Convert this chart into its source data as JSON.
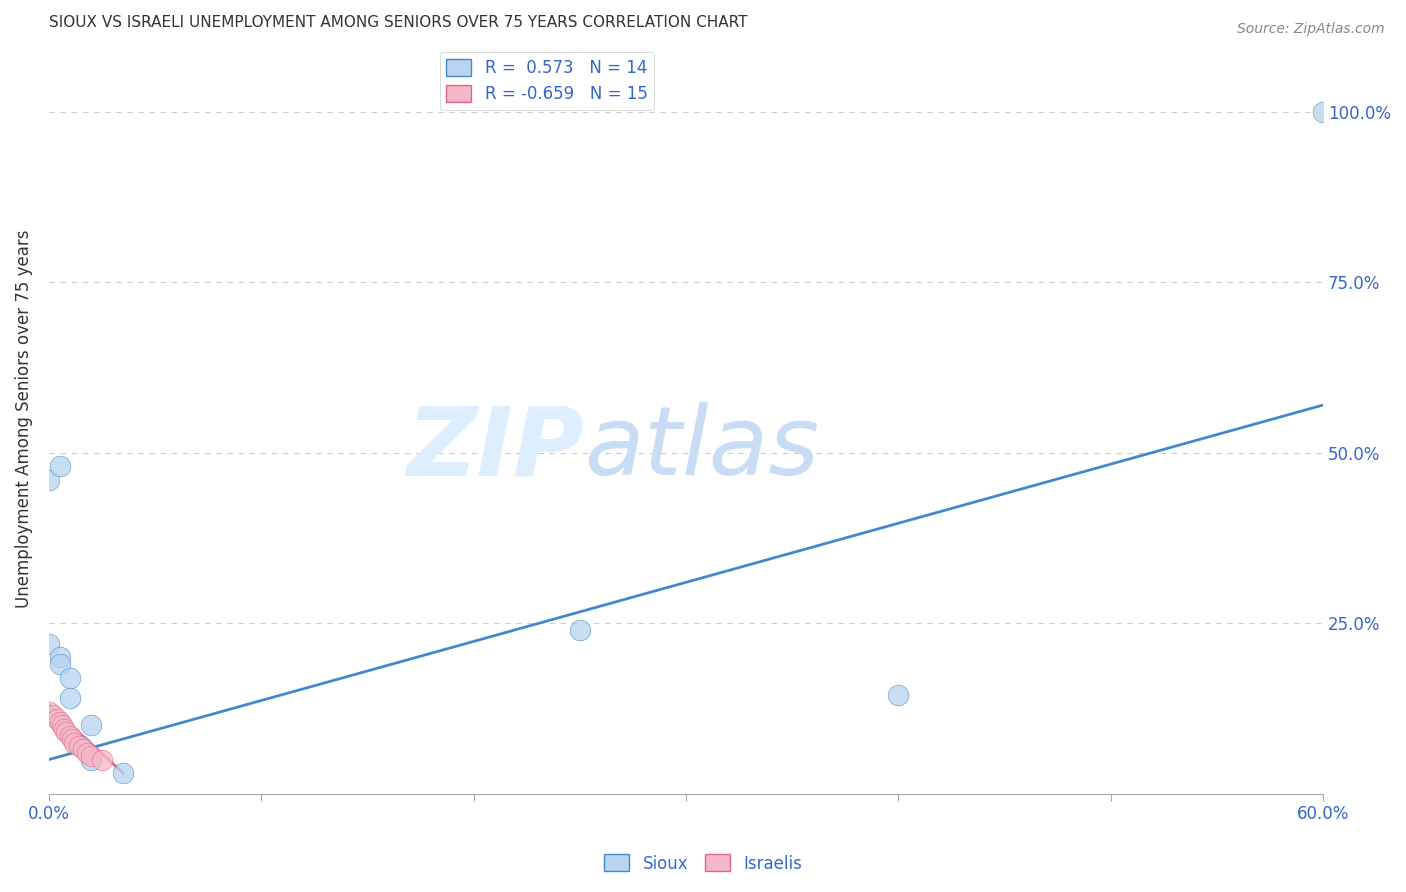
{
  "title": "SIOUX VS ISRAELI UNEMPLOYMENT AMONG SENIORS OVER 75 YEARS CORRELATION CHART",
  "source": "Source: ZipAtlas.com",
  "ylabel": "Unemployment Among Seniors over 75 years",
  "xlim": [
    0.0,
    0.6
  ],
  "ylim": [
    0.0,
    1.1
  ],
  "xtick_pos": [
    0.0,
    0.1,
    0.2,
    0.3,
    0.4,
    0.5,
    0.6
  ],
  "xtick_labels": [
    "0.0%",
    "",
    "",
    "",
    "",
    "",
    "60.0%"
  ],
  "ytick_pos": [
    0.0,
    0.25,
    0.5,
    0.75,
    1.0
  ],
  "ytick_labels_right": [
    "",
    "25.0%",
    "50.0%",
    "75.0%",
    "100.0%"
  ],
  "sioux_color": "#b8d4f0",
  "israeli_color": "#f5b8c8",
  "sioux_line_color": "#4488cc",
  "israeli_line_color": "#dd6688",
  "sioux_R": 0.573,
  "sioux_N": 14,
  "israeli_R": -0.659,
  "israeli_N": 15,
  "sioux_x": [
    0.0,
    0.005,
    0.005,
    0.01,
    0.01,
    0.015,
    0.02,
    0.02,
    0.035,
    0.25,
    0.4,
    0.6,
    0.0,
    0.005
  ],
  "sioux_y": [
    0.22,
    0.2,
    0.19,
    0.17,
    0.14,
    0.07,
    0.1,
    0.05,
    0.03,
    0.24,
    0.145,
    1.0,
    0.46,
    0.48
  ],
  "israeli_x": [
    0.0,
    0.002,
    0.004,
    0.005,
    0.006,
    0.007,
    0.008,
    0.01,
    0.011,
    0.012,
    0.014,
    0.016,
    0.018,
    0.02,
    0.025
  ],
  "israeli_y": [
    0.12,
    0.115,
    0.11,
    0.105,
    0.1,
    0.095,
    0.09,
    0.085,
    0.08,
    0.075,
    0.07,
    0.065,
    0.06,
    0.055,
    0.05
  ],
  "sioux_line_x": [
    0.0,
    0.6
  ],
  "sioux_line_y": [
    0.05,
    0.57
  ],
  "israeli_line_x": [
    0.0,
    0.035
  ],
  "israeli_line_y": [
    0.13,
    0.03
  ],
  "background_color": "#ffffff",
  "grid_color": "#cccccc"
}
